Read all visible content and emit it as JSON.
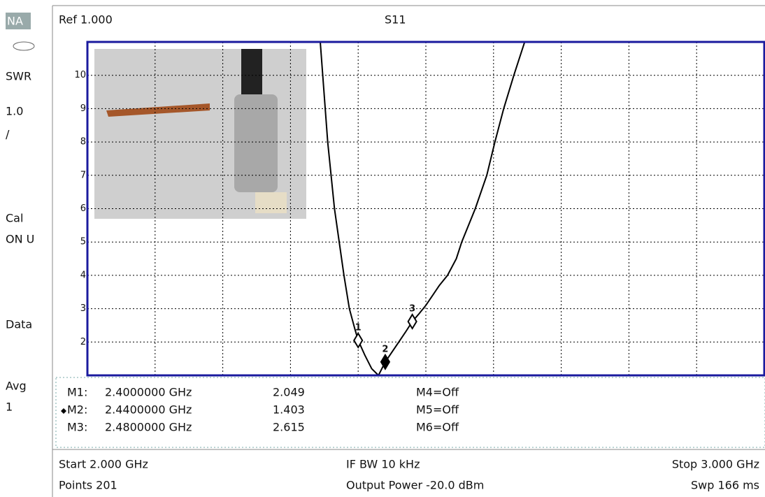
{
  "ui": {
    "sidebar": [
      "NA",
      "SWR",
      "1.0",
      "/",
      "Cal",
      "ON U",
      "Data",
      "Avg",
      "1"
    ],
    "header": {
      "ref": "Ref 1.000",
      "trace": "S11"
    },
    "marker_table": {
      "names": [
        "M1:",
        "M2:",
        "M3:"
      ],
      "freqs": [
        "2.4000000 GHz",
        "2.4400000 GHz",
        "2.4800000 GHz"
      ],
      "off": [
        "M4=Off",
        "M5=Off",
        "M6=Off"
      ]
    },
    "footer": {
      "start": "Start 2.000 GHz",
      "ifbw": "IF BW 10 kHz",
      "stop": "Stop 3.000 GHz",
      "points": "Points 201",
      "power": "Output Power -20.0 dBm",
      "sweep": "Swp 166 ms"
    }
  },
  "chart_data": {
    "type": "line",
    "color": "#000000",
    "grid": true,
    "x": [
      2.344,
      2.355,
      2.365,
      2.372,
      2.379,
      2.387,
      2.395,
      2.4,
      2.41,
      2.42,
      2.43,
      2.44,
      2.45,
      2.46,
      2.47,
      2.48,
      2.49,
      2.5,
      2.51,
      2.52,
      2.532,
      2.545,
      2.553,
      2.563,
      2.573,
      2.59,
      2.602,
      2.615,
      2.63,
      2.646
    ],
    "values": [
      11,
      8,
      6,
      5,
      4,
      3,
      2.4,
      2.049,
      1.6,
      1.2,
      1.0,
      1.403,
      1.7,
      2.0,
      2.3,
      2.615,
      2.85,
      3.1,
      3.4,
      3.7,
      4,
      4.5,
      5,
      5.5,
      6,
      7,
      8,
      9,
      10,
      11
    ],
    "xlim": [
      2.0,
      3.0
    ],
    "xticks": [
      2.1,
      2.2,
      2.3,
      2.4,
      2.5,
      2.6,
      2.7,
      2.8,
      2.9
    ],
    "ylim": [
      1,
      11
    ],
    "yticks": [
      2,
      3,
      4,
      5,
      6,
      7,
      8,
      9,
      10
    ],
    "markers": {
      "ids": [
        "1",
        "2",
        "3"
      ],
      "x": [
        2.4,
        2.44,
        2.48
      ],
      "values": [
        2.049,
        1.403,
        2.615
      ]
    }
  }
}
